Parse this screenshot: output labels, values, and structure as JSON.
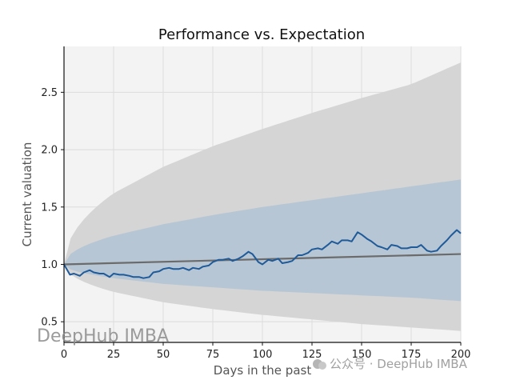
{
  "chart_data": {
    "type": "line",
    "title": "Performance vs. Expectation",
    "xlabel": "Days in the past",
    "ylabel": "Current valuation",
    "xlim": [
      0,
      200
    ],
    "ylim": [
      0.32,
      2.9
    ],
    "x_ticks": [
      0,
      25,
      50,
      75,
      100,
      125,
      150,
      175,
      200
    ],
    "y_ticks": [
      0.5,
      1.0,
      1.5,
      2.0,
      2.5
    ],
    "x_tick_labels": [
      "0",
      "25",
      "50",
      "75",
      "100",
      "125",
      "150",
      "175",
      "200"
    ],
    "y_tick_labels": [
      "0.5",
      "1.0",
      "1.5",
      "2.0",
      "2.5"
    ],
    "grid": true,
    "colors": {
      "plot_background": "#f3f3f3",
      "outer_band": "#d5d5d5",
      "inner_band": "#b7c6d4",
      "actual": "#1f5a99",
      "expected": "#6b6b6b"
    },
    "bands": {
      "outer": {
        "x": [
          0,
          25,
          50,
          75,
          100,
          125,
          150,
          175,
          200
        ],
        "upper": [
          1.0,
          1.62,
          1.85,
          2.03,
          2.18,
          2.32,
          2.45,
          2.57,
          2.76
        ],
        "lower": [
          1.0,
          0.76,
          0.67,
          0.61,
          0.56,
          0.52,
          0.48,
          0.45,
          0.42
        ]
      },
      "inner": {
        "x": [
          0,
          25,
          50,
          75,
          100,
          125,
          150,
          175,
          200
        ],
        "upper": [
          1.0,
          1.25,
          1.35,
          1.43,
          1.5,
          1.56,
          1.62,
          1.68,
          1.74
        ],
        "lower": [
          1.0,
          0.88,
          0.83,
          0.8,
          0.77,
          0.75,
          0.73,
          0.71,
          0.68
        ]
      }
    },
    "series": [
      {
        "x": [
          0,
          200
        ],
        "values": [
          1.0,
          1.09
        ]
      },
      {
        "x": [
          0,
          3,
          5,
          8,
          10,
          13,
          15,
          18,
          20,
          23,
          25,
          28,
          30,
          33,
          35,
          38,
          40,
          43,
          45,
          48,
          50,
          53,
          55,
          58,
          60,
          63,
          65,
          68,
          70,
          73,
          75,
          78,
          80,
          83,
          85,
          88,
          90,
          93,
          95,
          98,
          100,
          103,
          105,
          108,
          110,
          113,
          115,
          118,
          120,
          123,
          125,
          128,
          130,
          133,
          135,
          138,
          140,
          143,
          145,
          148,
          150,
          153,
          155,
          158,
          160,
          163,
          165,
          168,
          170,
          173,
          175,
          178,
          180,
          183,
          185,
          188,
          190,
          193,
          195,
          198,
          200
        ],
        "values": [
          1.0,
          0.91,
          0.92,
          0.9,
          0.93,
          0.95,
          0.93,
          0.92,
          0.92,
          0.89,
          0.92,
          0.91,
          0.91,
          0.9,
          0.89,
          0.89,
          0.88,
          0.89,
          0.93,
          0.94,
          0.96,
          0.97,
          0.96,
          0.96,
          0.97,
          0.95,
          0.97,
          0.96,
          0.98,
          0.99,
          1.02,
          1.04,
          1.04,
          1.05,
          1.03,
          1.05,
          1.07,
          1.11,
          1.09,
          1.02,
          1.0,
          1.04,
          1.03,
          1.05,
          1.01,
          1.02,
          1.03,
          1.08,
          1.08,
          1.1,
          1.13,
          1.14,
          1.13,
          1.17,
          1.2,
          1.18,
          1.21,
          1.21,
          1.2,
          1.28,
          1.26,
          1.22,
          1.2,
          1.16,
          1.15,
          1.13,
          1.17,
          1.16,
          1.14,
          1.14,
          1.15,
          1.15,
          1.17,
          1.12,
          1.11,
          1.12,
          1.16,
          1.21,
          1.25,
          1.3,
          1.27
        ]
      }
    ]
  },
  "watermarks": {
    "left": "DeepHub IMBA",
    "right": "公众号 · DeepHub IMBA"
  }
}
